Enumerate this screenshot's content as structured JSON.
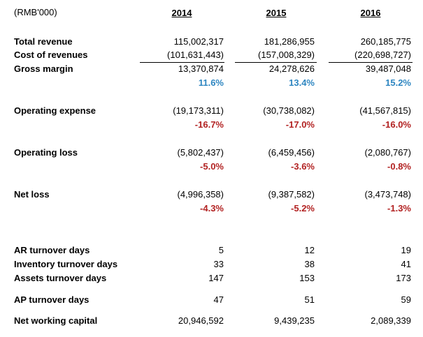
{
  "unit_label": "(RMB'000)",
  "years": [
    "2014",
    "2015",
    "2016"
  ],
  "rows": {
    "total_revenue": {
      "label": "Total revenue",
      "values": [
        "115,002,317",
        "181,286,955",
        "260,185,775"
      ]
    },
    "cost_of_revenues": {
      "label": "Cost of revenues",
      "values": [
        "(101,631,443)",
        "(157,008,329)",
        "(220,698,727)"
      ]
    },
    "gross_margin": {
      "label": "Gross margin",
      "values": [
        "13,370,874",
        "24,278,626",
        "39,487,048"
      ],
      "pct": [
        "11.6%",
        "13.4%",
        "15.2%"
      ]
    },
    "operating_expense": {
      "label": "Operating expense",
      "values": [
        "(19,173,311)",
        "(30,738,082)",
        "(41,567,815)"
      ],
      "pct": [
        "-16.7%",
        "-17.0%",
        "-16.0%"
      ]
    },
    "operating_loss": {
      "label": "Operating loss",
      "values": [
        "(5,802,437)",
        "(6,459,456)",
        "(2,080,767)"
      ],
      "pct": [
        "-5.0%",
        "-3.6%",
        "-0.8%"
      ]
    },
    "net_loss": {
      "label": "Net loss",
      "values": [
        "(4,996,358)",
        "(9,387,582)",
        "(3,473,748)"
      ],
      "pct": [
        "-4.3%",
        "-5.2%",
        "-1.3%"
      ]
    },
    "ar_turnover_days": {
      "label": "AR turnover days",
      "values": [
        "5",
        "12",
        "19"
      ]
    },
    "inventory_turnover_days": {
      "label": "Inventory turnover days",
      "values": [
        "33",
        "38",
        "41"
      ]
    },
    "assets_turnover_days": {
      "label": "Assets turnover days",
      "values": [
        "147",
        "153",
        "173"
      ]
    },
    "ap_turnover_days": {
      "label": "AP turnover days",
      "values": [
        "47",
        "51",
        "59"
      ]
    },
    "net_working_capital": {
      "label": "Net working capital",
      "values": [
        "20,946,592",
        "9,439,235",
        "2,089,339"
      ]
    }
  },
  "colors": {
    "positive_pct": "#2e86c1",
    "negative_pct": "#b22222"
  }
}
